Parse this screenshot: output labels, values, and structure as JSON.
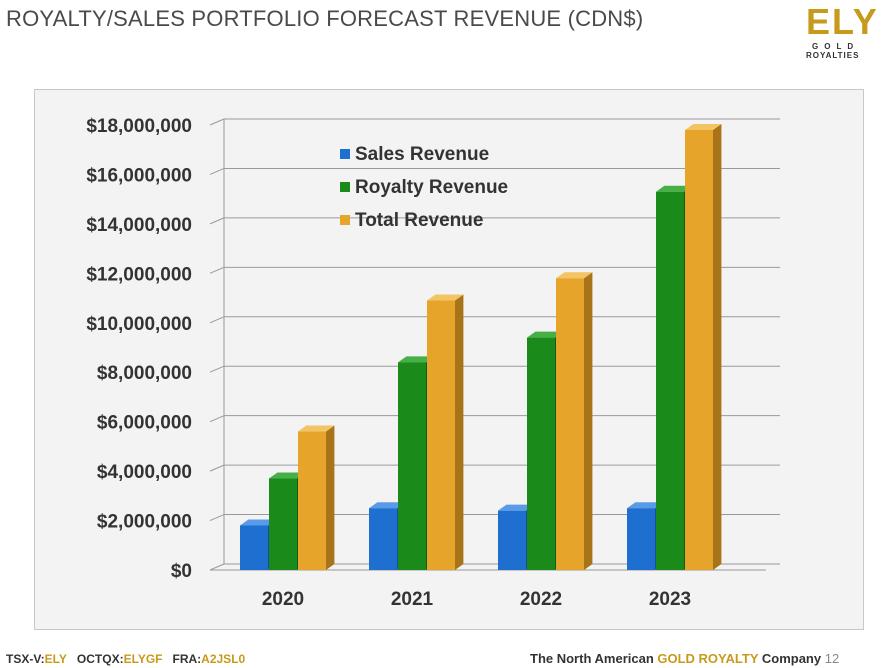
{
  "header": {
    "title": "ROYALTY/SALES PORTFOLIO FORECAST REVENUE (CDN$)"
  },
  "logo": {
    "main": "ELY",
    "line1": "GOLD",
    "line2": "ROYALTIES"
  },
  "footer": {
    "tickers": [
      {
        "exchange": "TSX-V:",
        "symbol": "ELY"
      },
      {
        "exchange": "OCTQX:",
        "symbol": "ELYGF"
      },
      {
        "exchange": "FRA:",
        "symbol": "A2JSL0"
      }
    ],
    "tagline_prefix": "The North American ",
    "tagline_highlight": "GOLD ROYALTY",
    "tagline_suffix": " Company",
    "page_number": "12"
  },
  "colors": {
    "sales": "#1f6fd0",
    "royalty": "#1a8a1a",
    "total": "#e6a42a",
    "accent_gold": "#c79a1c"
  },
  "chart_data": {
    "type": "bar",
    "categories": [
      "2020",
      "2021",
      "2022",
      "2023"
    ],
    "series": [
      {
        "name": "Sales Revenue",
        "values": [
          1800000,
          2500000,
          2400000,
          2500000
        ]
      },
      {
        "name": "Royalty Revenue",
        "values": [
          3700000,
          8400000,
          9400000,
          15300000
        ]
      },
      {
        "name": "Total Revenue",
        "values": [
          5600000,
          10900000,
          11800000,
          17800000
        ]
      }
    ],
    "ylim": [
      0,
      18000000
    ],
    "yticks": [
      0,
      2000000,
      4000000,
      6000000,
      8000000,
      10000000,
      12000000,
      14000000,
      16000000,
      18000000
    ],
    "ytick_labels": [
      "$0",
      "$2,000,000",
      "$4,000,000",
      "$6,000,000",
      "$8,000,000",
      "$10,000,000",
      "$12,000,000",
      "$14,000,000",
      "$16,000,000",
      "$18,000,000"
    ],
    "grid": true,
    "legend_position": "top-center",
    "style": "3d-column"
  }
}
